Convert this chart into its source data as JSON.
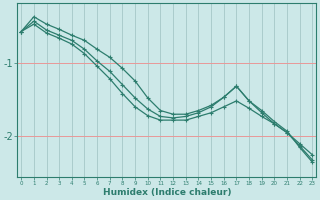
{
  "xlabel": "Humidex (Indice chaleur)",
  "bg_color": "#cce8e8",
  "line_color": "#2d7d6e",
  "hgrid_color": "#e89898",
  "vgrid_color": "#aacccc",
  "x_values": [
    0,
    1,
    2,
    3,
    4,
    5,
    6,
    7,
    8,
    9,
    10,
    11,
    12,
    13,
    14,
    15,
    16,
    17,
    18,
    19,
    20,
    21,
    22,
    23
  ],
  "line1_y": [
    -0.58,
    -0.48,
    -0.6,
    -0.67,
    -0.75,
    -0.88,
    -1.05,
    -1.22,
    -1.42,
    -1.6,
    -1.72,
    -1.78,
    -1.78,
    -1.78,
    -1.73,
    -1.68,
    -1.6,
    -1.52,
    -1.62,
    -1.73,
    -1.83,
    -1.95,
    -2.1,
    -2.25
  ],
  "line2_y": [
    -0.58,
    -0.44,
    -0.56,
    -0.63,
    -0.7,
    -0.82,
    -0.98,
    -1.12,
    -1.3,
    -1.48,
    -1.63,
    -1.73,
    -1.75,
    -1.73,
    -1.68,
    -1.6,
    -1.47,
    -1.32,
    -1.52,
    -1.68,
    -1.83,
    -1.95,
    -2.13,
    -2.32
  ],
  "line3_y": [
    -0.58,
    -0.38,
    -0.48,
    -0.55,
    -0.63,
    -0.7,
    -0.82,
    -0.93,
    -1.08,
    -1.25,
    -1.48,
    -1.65,
    -1.7,
    -1.7,
    -1.65,
    -1.58,
    -1.47,
    -1.32,
    -1.52,
    -1.65,
    -1.8,
    -1.93,
    -2.15,
    -2.35
  ],
  "ylim": [
    -2.55,
    -0.2
  ],
  "xlim": [
    -0.3,
    23.3
  ],
  "yticks": [
    -1.0,
    -2.0
  ],
  "ytick_labels": [
    "-1",
    "-2"
  ],
  "marker": "+"
}
